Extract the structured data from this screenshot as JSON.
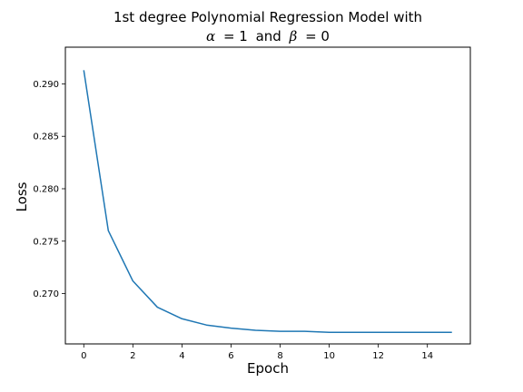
{
  "chart_data": {
    "type": "line",
    "title_line1": "1st degree Polynomial Regression Model with",
    "title_line2": {
      "alpha_symbol": "α",
      "alpha_value": "= 1",
      "conjunction": "and",
      "beta_symbol": "β",
      "beta_value": "= 0"
    },
    "xlabel": "Epoch",
    "ylabel": "Loss",
    "xlim": [
      -0.75,
      15.75
    ],
    "ylim": [
      0.2652,
      0.2935
    ],
    "xticks": [
      0,
      2,
      4,
      6,
      8,
      10,
      12,
      14
    ],
    "xtick_labels": [
      "0",
      "2",
      "4",
      "6",
      "8",
      "10",
      "12",
      "14"
    ],
    "yticks": [
      0.27,
      0.275,
      0.28,
      0.285,
      0.29
    ],
    "ytick_labels": [
      "0.270",
      "0.275",
      "0.280",
      "0.285",
      "0.290"
    ],
    "grid": false,
    "series": [
      {
        "color": "#1f77b4",
        "x": [
          0,
          1,
          2,
          3,
          4,
          5,
          6,
          7,
          8,
          9,
          10,
          11,
          12,
          13,
          14,
          15
        ],
        "y": [
          0.2913,
          0.276,
          0.2712,
          0.2687,
          0.2676,
          0.267,
          0.2667,
          0.2665,
          0.2664,
          0.2664,
          0.2663,
          0.2663,
          0.2663,
          0.2663,
          0.2663,
          0.2663
        ]
      }
    ]
  }
}
